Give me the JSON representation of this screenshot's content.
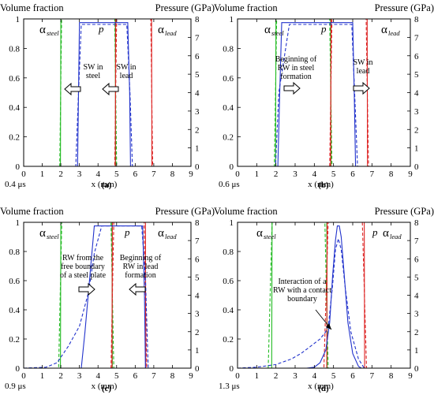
{
  "chart_data": [
    {
      "type": "line",
      "panel": "(a)",
      "time_label": "0.4 μs",
      "xlabel": "x (mm)",
      "ylabel_left": "Volume fraction",
      "ylabel_right": "Pressure (GPa)",
      "xlim": [
        0,
        9
      ],
      "ylim_left": [
        0,
        1
      ],
      "ylim_right": [
        0,
        8
      ],
      "x_ticks": [
        0,
        1,
        2,
        3,
        4,
        5,
        6,
        7,
        8,
        9
      ],
      "y_ticks_left": [
        0,
        0.2,
        0.4,
        0.6,
        0.8,
        1
      ],
      "y_ticks_right": [
        0,
        1,
        2,
        3,
        4,
        5,
        6,
        7,
        8
      ],
      "labels": {
        "alpha_steel": "α",
        "alpha_steel_sub": "steel",
        "alpha_lead": "α",
        "alpha_lead_sub": "lead",
        "pressure": "p"
      },
      "annotations": [
        "SW in steel",
        "SW in lead"
      ],
      "series": [
        {
          "color": "#22bb22",
          "style": "solid",
          "axis": "left",
          "x": [
            0,
            1.98,
            2.0,
            4.93,
            4.95,
            9
          ],
          "y": [
            0,
            0,
            1,
            1,
            0,
            0
          ]
        },
        {
          "color": "#22bb22",
          "style": "dashed",
          "axis": "left",
          "x": [
            0,
            1.94,
            2.04,
            4.9,
            5.0,
            9
          ],
          "y": [
            0,
            0,
            1,
            1,
            0,
            0
          ]
        },
        {
          "color": "#dd2222",
          "style": "solid",
          "axis": "left",
          "x": [
            0,
            4.93,
            4.95,
            6.88,
            6.9,
            9
          ],
          "y": [
            0,
            0,
            1,
            1,
            0,
            0
          ]
        },
        {
          "color": "#dd2222",
          "style": "dashed",
          "axis": "left",
          "x": [
            0,
            4.9,
            5.0,
            6.84,
            6.94,
            9
          ],
          "y": [
            0,
            0,
            1,
            1,
            0,
            0
          ]
        },
        {
          "color": "#2233cc",
          "style": "solid",
          "axis": "right",
          "x": [
            0,
            2.9,
            2.95,
            3.0,
            5.6,
            5.7,
            5.75,
            9
          ],
          "y": [
            0,
            0,
            4,
            7.8,
            7.8,
            4,
            0,
            0
          ]
        },
        {
          "color": "#2233cc",
          "style": "dashed",
          "axis": "right",
          "x": [
            0,
            2.8,
            2.95,
            3.1,
            5.55,
            5.72,
            5.85,
            9
          ],
          "y": [
            0,
            0,
            4,
            7.7,
            7.7,
            4,
            0,
            0
          ]
        }
      ]
    },
    {
      "type": "line",
      "panel": "(b)",
      "time_label": "0.6 μs",
      "xlabel": "x (mm)",
      "ylabel_left": "Volume fraction",
      "ylabel_right": "Pressure (GPa)",
      "xlim": [
        0,
        9
      ],
      "ylim_left": [
        0,
        1
      ],
      "ylim_right": [
        0,
        8
      ],
      "x_ticks": [
        0,
        1,
        2,
        3,
        4,
        5,
        6,
        7,
        8,
        9
      ],
      "y_ticks_left": [
        0,
        0.2,
        0.4,
        0.6,
        0.8,
        1
      ],
      "y_ticks_right": [
        0,
        1,
        2,
        3,
        4,
        5,
        6,
        7,
        8
      ],
      "labels": {
        "alpha_steel": "α",
        "alpha_steel_sub": "steel",
        "alpha_lead": "α",
        "alpha_lead_sub": "lead",
        "pressure": "p"
      },
      "annotations": [
        "Beginning of RW in steel formation",
        "SW in lead"
      ],
      "series": [
        {
          "color": "#22bb22",
          "style": "solid",
          "axis": "left",
          "x": [
            0,
            1.98,
            2.0,
            4.85,
            4.87,
            9
          ],
          "y": [
            0,
            0,
            1,
            1,
            0,
            0
          ]
        },
        {
          "color": "#22bb22",
          "style": "dashed",
          "axis": "left",
          "x": [
            0,
            1.92,
            2.04,
            4.8,
            4.92,
            9
          ],
          "y": [
            0,
            0,
            1,
            1,
            0,
            0
          ]
        },
        {
          "color": "#dd2222",
          "style": "solid",
          "axis": "left",
          "x": [
            0,
            4.85,
            4.87,
            6.75,
            6.77,
            9
          ],
          "y": [
            0,
            0,
            1,
            1,
            0,
            0
          ]
        },
        {
          "color": "#dd2222",
          "style": "dashed",
          "axis": "left",
          "x": [
            0,
            4.8,
            4.92,
            6.7,
            6.82,
            9
          ],
          "y": [
            0,
            0,
            1,
            1,
            0,
            0
          ]
        },
        {
          "color": "#2233cc",
          "style": "solid",
          "axis": "right",
          "x": [
            0,
            2.1,
            2.2,
            2.3,
            6.0,
            6.08,
            6.15,
            9
          ],
          "y": [
            0,
            0,
            4,
            7.8,
            7.8,
            4,
            0,
            0
          ]
        },
        {
          "color": "#2233cc",
          "style": "dashed",
          "axis": "right",
          "x": [
            0,
            1.98,
            2.15,
            2.7,
            5.95,
            6.1,
            6.25,
            9
          ],
          "y": [
            0,
            0,
            4,
            7.7,
            7.7,
            4,
            0,
            0
          ]
        }
      ]
    },
    {
      "type": "line",
      "panel": "(c)",
      "time_label": "0.9 μs",
      "xlabel": "x (mm)",
      "ylabel_left": "Volume fraction",
      "ylabel_right": "Pressure (GPa)",
      "xlim": [
        0,
        9
      ],
      "ylim_left": [
        0,
        1
      ],
      "ylim_right": [
        0,
        8
      ],
      "x_ticks": [
        0,
        1,
        2,
        3,
        4,
        5,
        6,
        7,
        8,
        9
      ],
      "y_ticks_left": [
        0,
        0.2,
        0.4,
        0.6,
        0.8,
        1
      ],
      "y_ticks_right": [
        0,
        1,
        2,
        3,
        4,
        5,
        6,
        7,
        8
      ],
      "labels": {
        "alpha_steel": "α",
        "alpha_steel_sub": "steel",
        "alpha_lead": "α",
        "alpha_lead_sub": "lead",
        "pressure": "p"
      },
      "annotations": [
        "RW from the free boundary of a steel plate",
        "Beginning of RW in lead formation"
      ],
      "series": [
        {
          "color": "#22bb22",
          "style": "solid",
          "axis": "left",
          "x": [
            0,
            1.98,
            2.0,
            4.75,
            4.77,
            9
          ],
          "y": [
            0,
            0,
            1,
            1,
            0,
            0
          ]
        },
        {
          "color": "#22bb22",
          "style": "dashed",
          "axis": "left",
          "x": [
            0,
            1.88,
            2.05,
            4.7,
            4.85,
            9
          ],
          "y": [
            0,
            0,
            1,
            1,
            0,
            0
          ]
        },
        {
          "color": "#dd2222",
          "style": "solid",
          "axis": "left",
          "x": [
            0,
            4.75,
            4.77,
            6.55,
            6.57,
            9
          ],
          "y": [
            0,
            0,
            1,
            1,
            0,
            0
          ]
        },
        {
          "color": "#dd2222",
          "style": "dashed",
          "axis": "left",
          "x": [
            0,
            4.7,
            4.85,
            6.48,
            6.62,
            9
          ],
          "y": [
            0,
            0,
            1,
            1,
            0,
            0
          ]
        },
        {
          "color": "#2233cc",
          "style": "solid",
          "axis": "right",
          "x": [
            0,
            3.1,
            3.3,
            3.6,
            3.8,
            6.4,
            6.5,
            6.55,
            9
          ],
          "y": [
            0,
            0,
            2,
            5.5,
            7.8,
            7.8,
            4,
            0,
            0
          ]
        },
        {
          "color": "#2233cc",
          "style": "dashed",
          "axis": "right",
          "x": [
            0,
            1.2,
            1.8,
            2.4,
            3.0,
            3.5,
            3.8,
            4.2,
            6.35,
            6.55,
            6.7,
            9
          ],
          "y": [
            0,
            0.05,
            0.3,
            1.2,
            2.3,
            4.2,
            6.3,
            7.8,
            7.8,
            5,
            0,
            0
          ]
        }
      ]
    },
    {
      "type": "line",
      "panel": "(d)",
      "time_label": "1.3 μs",
      "xlabel": "x (mm)",
      "ylabel_left": "Volume fraction",
      "ylabel_right": "Pressure (GPa)",
      "xlim": [
        0,
        9
      ],
      "ylim_left": [
        0,
        1
      ],
      "ylim_right": [
        0,
        8
      ],
      "x_ticks": [
        0,
        1,
        2,
        3,
        4,
        5,
        6,
        7,
        8,
        9
      ],
      "y_ticks_left": [
        0,
        0.2,
        0.4,
        0.6,
        0.8,
        1
      ],
      "y_ticks_right": [
        0,
        1,
        2,
        3,
        4,
        5,
        6,
        7,
        8
      ],
      "labels": {
        "alpha_steel": "α",
        "alpha_steel_sub": "steel",
        "alpha_lead": "α",
        "alpha_lead_sub": "lead",
        "pressure": "p"
      },
      "annotations": [
        "Interaction of a RW with a contact boundary"
      ],
      "series": [
        {
          "color": "#22bb22",
          "style": "solid",
          "axis": "left",
          "x": [
            0,
            1.78,
            1.8,
            4.65,
            4.67,
            9
          ],
          "y": [
            0,
            0,
            1,
            1,
            0,
            0
          ]
        },
        {
          "color": "#22bb22",
          "style": "dashed",
          "axis": "left",
          "x": [
            0,
            1.6,
            1.8,
            4.55,
            4.72,
            9
          ],
          "y": [
            0,
            0,
            1,
            1,
            0,
            0
          ]
        },
        {
          "color": "#dd2222",
          "style": "solid",
          "axis": "left",
          "x": [
            0,
            4.65,
            4.67,
            6.6,
            6.62,
            9
          ],
          "y": [
            0,
            0,
            1,
            1,
            0,
            0
          ]
        },
        {
          "color": "#dd2222",
          "style": "dashed",
          "axis": "left",
          "x": [
            0,
            4.5,
            4.72,
            6.5,
            6.72,
            9
          ],
          "y": [
            0,
            0,
            1,
            1,
            0,
            0
          ]
        },
        {
          "color": "#2233cc",
          "style": "solid",
          "axis": "right",
          "x": [
            0,
            3.6,
            4.0,
            4.3,
            4.6,
            4.8,
            4.95,
            5.1,
            5.2,
            5.3,
            5.4,
            5.55,
            5.75,
            6.0,
            6.3,
            6.45,
            9
          ],
          "y": [
            0,
            0,
            0.05,
            0.3,
            1.0,
            2.5,
            5.0,
            7.0,
            7.8,
            7.8,
            7.2,
            5.2,
            2.5,
            0.8,
            0.1,
            0,
            0
          ]
        },
        {
          "color": "#2233cc",
          "style": "dashed",
          "axis": "right",
          "x": [
            0,
            1.0,
            2.0,
            2.8,
            3.3,
            3.8,
            4.3,
            4.6,
            4.75,
            4.95,
            5.1,
            5.25,
            5.4,
            5.6,
            5.9,
            6.3,
            6.6,
            9
          ],
          "y": [
            0,
            0.05,
            0.2,
            0.5,
            0.8,
            1.2,
            1.6,
            2.0,
            2.5,
            4.5,
            6.5,
            7.1,
            6.5,
            4.5,
            2.0,
            0.5,
            0,
            0
          ]
        }
      ]
    }
  ]
}
